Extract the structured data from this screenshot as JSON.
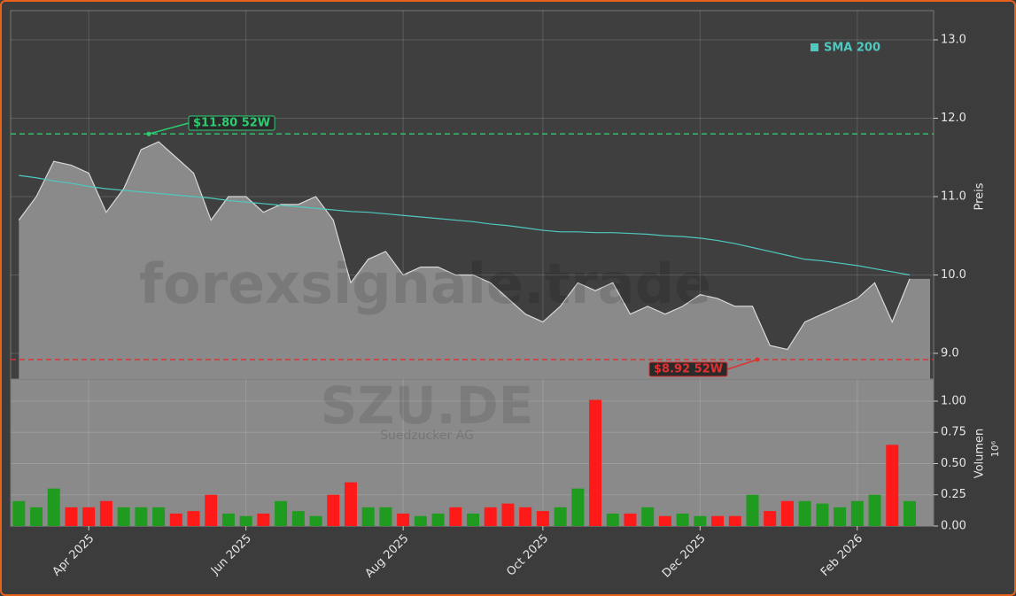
{
  "chart_data": {
    "type": "area",
    "categories": [
      null,
      null,
      null,
      null,
      "Apr 2025",
      null,
      null,
      null,
      null,
      null,
      null,
      null,
      null,
      "Jun 2025",
      null,
      null,
      null,
      null,
      null,
      null,
      null,
      null,
      "Aug 2025",
      null,
      null,
      null,
      null,
      null,
      null,
      null,
      "Oct 2025",
      null,
      null,
      null,
      null,
      null,
      null,
      null,
      null,
      "Dec 2025",
      null,
      null,
      null,
      null,
      null,
      null,
      null,
      null,
      "Feb 2026",
      null,
      null,
      null
    ],
    "values": [
      10.7,
      11.0,
      11.45,
      11.4,
      11.3,
      10.8,
      11.1,
      11.6,
      11.7,
      11.5,
      11.3,
      10.7,
      11.0,
      11.0,
      10.8,
      10.9,
      10.9,
      11.0,
      10.7,
      9.9,
      10.2,
      10.3,
      10.0,
      10.1,
      10.1,
      10.0,
      10.0,
      9.9,
      9.7,
      9.5,
      9.4,
      9.6,
      9.9,
      9.8,
      9.9,
      9.5,
      9.6,
      9.5,
      9.6,
      9.75,
      9.7,
      9.6,
      9.6,
      9.1,
      9.05,
      9.4,
      9.5,
      9.6,
      9.7,
      9.9,
      9.4,
      9.95
    ],
    "color": "#8a8a8a",
    "ylabel": "Preis",
    "ylim": [
      8.672,
      13.373
    ],
    "yticks": [
      {
        "value": 9,
        "label": "9.0"
      },
      {
        "value": 10,
        "label": "10.0"
      },
      {
        "value": 11,
        "label": "11.0"
      },
      {
        "value": 12,
        "label": "12.0"
      },
      {
        "value": 13,
        "label": "13.0"
      }
    ],
    "grid": true,
    "legend": "upper right",
    "series": [
      {
        "name": "SMA 200",
        "color": "#4fc9c0",
        "values": [
          11.27,
          11.24,
          11.2,
          11.17,
          11.13,
          11.1,
          11.08,
          11.06,
          11.04,
          11.02,
          11.0,
          10.98,
          10.95,
          10.93,
          10.91,
          10.89,
          10.87,
          10.85,
          10.83,
          10.81,
          10.8,
          10.78,
          10.76,
          10.74,
          10.72,
          10.7,
          10.68,
          10.65,
          10.63,
          10.6,
          10.57,
          10.55,
          10.55,
          10.54,
          10.54,
          10.53,
          10.52,
          10.5,
          10.49,
          10.47,
          10.44,
          10.4,
          10.35,
          10.3,
          10.25,
          10.2,
          10.18,
          10.15,
          10.12,
          10.08,
          10.04,
          10.0
        ]
      }
    ],
    "annotations": [
      {
        "value": 11.8,
        "label": "$11.80 52W",
        "color": "#2ecc71"
      },
      {
        "value": 8.92,
        "label": "$8.92 52W",
        "color": "#e03030"
      }
    ],
    "volume": {
      "ylabel": "Volumen",
      "scale_label": "10⁶",
      "up_color": "#1f9c1f",
      "down_color": "#ff1a1a",
      "values": [
        0.2,
        0.15,
        0.3,
        0.15,
        0.15,
        0.2,
        0.15,
        0.15,
        0.15,
        0.1,
        0.12,
        0.25,
        0.1,
        0.08,
        0.1,
        0.2,
        0.12,
        0.08,
        0.25,
        0.35,
        0.15,
        0.15,
        0.1,
        0.08,
        0.1,
        0.15,
        0.1,
        0.15,
        0.18,
        0.15,
        0.12,
        0.15,
        0.3,
        1.01,
        0.1,
        0.1,
        0.15,
        0.08,
        0.1,
        0.08,
        0.08,
        0.08,
        0.25,
        0.12,
        0.2,
        0.2,
        0.18,
        0.15,
        0.2,
        0.25,
        0.65,
        0.2
      ],
      "ylim": [
        0,
        1.177
      ],
      "yticks": [
        {
          "value": 0,
          "label": "0.00"
        },
        {
          "value": 0.25,
          "label": "0.25"
        },
        {
          "value": 0.5,
          "label": "0.50"
        },
        {
          "value": 0.75,
          "label": "0.75"
        },
        {
          "value": 1,
          "label": "1.00"
        }
      ]
    },
    "watermark": {
      "site": "forexsignale.trade",
      "ticker": "SZU.DE",
      "company": "Suedzucker AG"
    }
  }
}
